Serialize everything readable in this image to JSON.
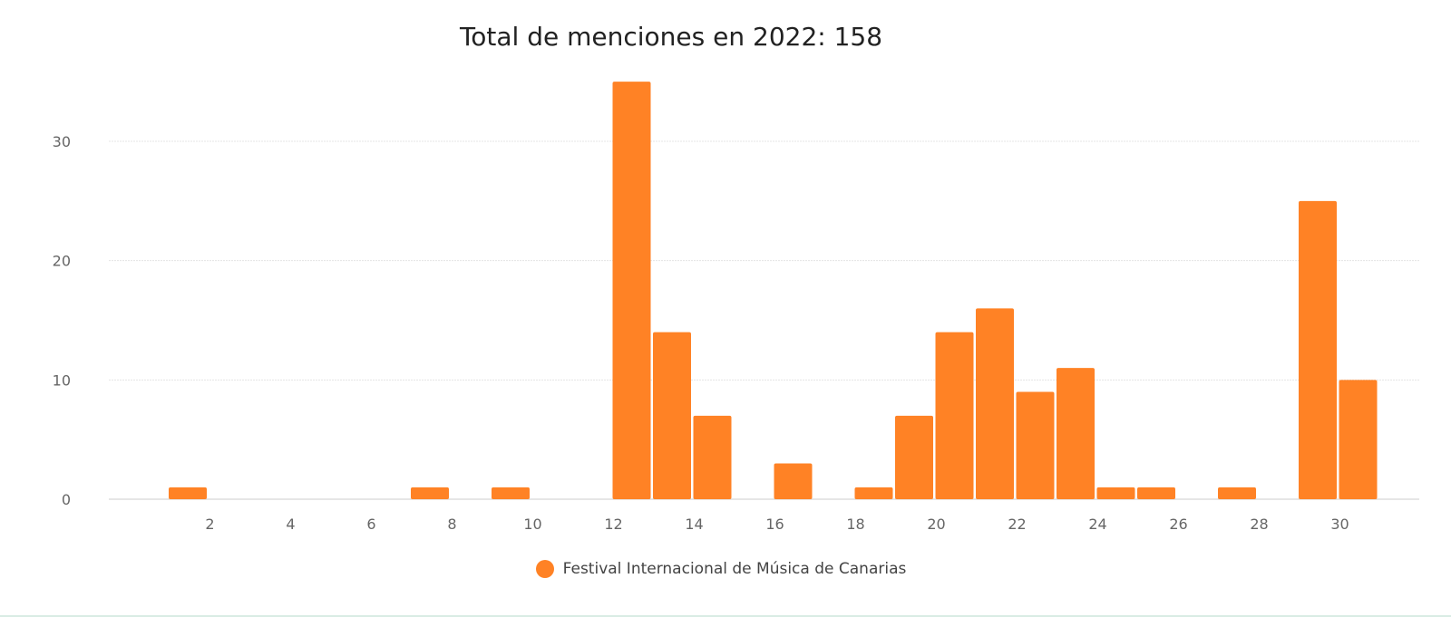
{
  "chart_data": {
    "type": "bar",
    "title": "Total de menciones en 2022: 158",
    "xlabel": "",
    "ylabel": "",
    "categories": [
      1,
      2,
      3,
      4,
      5,
      6,
      7,
      8,
      9,
      10,
      11,
      12,
      13,
      14,
      15,
      16,
      17,
      18,
      19,
      20,
      21,
      22,
      23,
      24,
      25,
      26,
      27,
      28,
      29,
      30
    ],
    "x_tick_labels": [
      "2",
      "4",
      "6",
      "8",
      "10",
      "12",
      "14",
      "16",
      "18",
      "20",
      "22",
      "24",
      "26",
      "28",
      "30"
    ],
    "series": [
      {
        "name": "Festival Internacional de Música de Canarias",
        "values": [
          1,
          0,
          0,
          0,
          0,
          0,
          1,
          0,
          1,
          0,
          0,
          35,
          14,
          7,
          0,
          3,
          0,
          1,
          7,
          14,
          16,
          9,
          11,
          1,
          1,
          0,
          1,
          0,
          25,
          10
        ]
      }
    ],
    "ylim": [
      0,
      35
    ],
    "y_ticks": [
      0,
      10,
      20,
      30
    ],
    "grid": true,
    "legend": "bottom-center",
    "colors": {
      "bar": "#ff8225",
      "grid": "#e4e4e4",
      "axis": "#cccccc"
    }
  }
}
